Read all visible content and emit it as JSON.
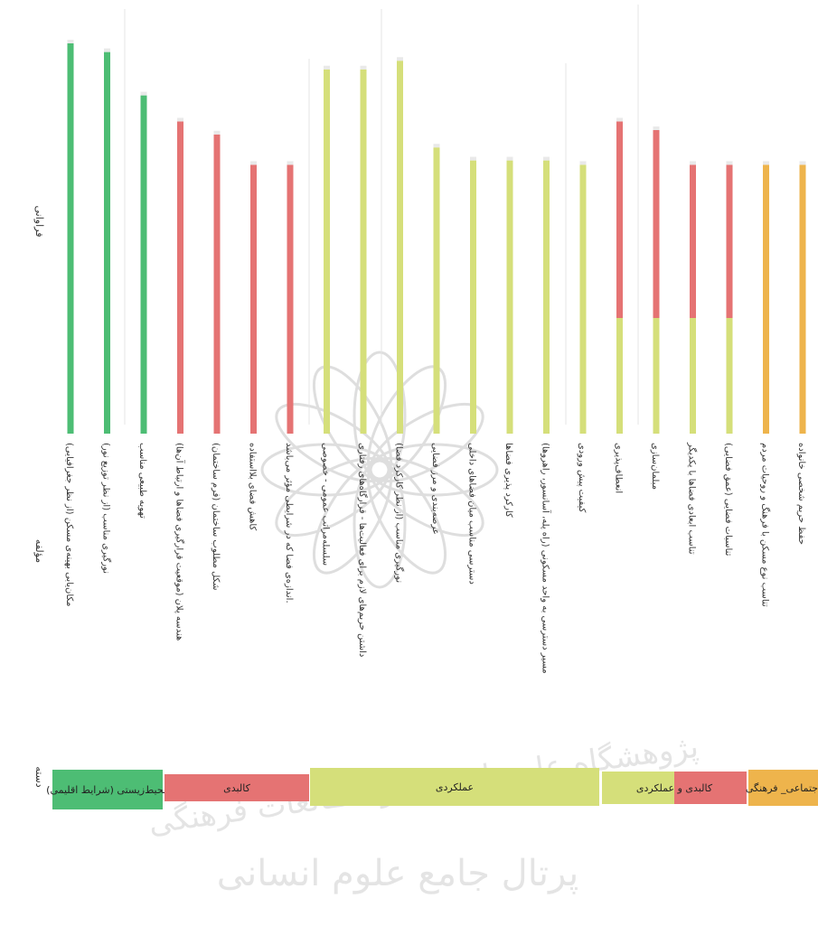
{
  "chart_data": {
    "type": "bar",
    "ylabel": "فراوانی",
    "xlabel": "مؤلفه",
    "group_axis_label": "دسته",
    "categories": [
      "مکان‌یابی بهینه‌ی مسکن (از نظر جغرافیایی)",
      "نورگیری مناسب (از نظر توزیع نور)",
      "تهویه طبیعی مناسب",
      "هندسه پلان (موقعیت قرارگیری فضاها و ارتباط آن‌ها)",
      "شکل مطلوب ساختمان (فرم ساختمان)",
      "کاهش فضای بلااستفاده",
      "اندازه‌ی فضا که در شرایطی مؤثر می‌باشد.",
      "سلسله‌مراتب عمومی - خصوصی",
      "داشتن حریم‌های لازم برای فعالیت‌ها - قرارگاه‌های رفتاری",
      "نورگیری مناسب (از نظر کارکرد فضا)",
      "عرصه‌بندی و مرز فضایی",
      "دسترسی مناسب میان فضاهای داخلی",
      "کارکرد پذیری فضاها",
      "مسیر دسترسی به واحد مسکونی (راه پله، آسانسور، راهرو‌ها)",
      "کیفیت پیش ورودی",
      "انعطاف‌پذیری",
      "مبلمان‌سازی",
      "تناسب ابعادی فضاها با یکدیگر",
      "تناسبات فضایی (عمق فضایی)",
      "تناسب نوع مسکن با فرهنگ و روحیات مردم",
      "حفظ حریم شخصی خانواده"
    ],
    "values": [
      9,
      8.8,
      7.8,
      7.2,
      6.9,
      6.2,
      6.2,
      8.4,
      8.4,
      8.6,
      6.6,
      6.3,
      6.3,
      6.3,
      6.2,
      7.2,
      7.0,
      6.2,
      6.2,
      6.2,
      6.2
    ],
    "value_labels": [
      "",
      "",
      "",
      "",
      "",
      "",
      "",
      "",
      "",
      "",
      "",
      "",
      "",
      "",
      "",
      "",
      "",
      "",
      "",
      "",
      ""
    ],
    "bar_groups": [
      0,
      0,
      0,
      1,
      1,
      1,
      1,
      2,
      2,
      2,
      2,
      2,
      2,
      2,
      2,
      3,
      3,
      3,
      3,
      4,
      4
    ],
    "ylim": [
      0,
      10
    ],
    "groups": [
      {
        "label": "محیط‌زیستی (شرایط اقلیمی)",
        "color": "#4dbd74"
      },
      {
        "label": "کالبدی",
        "color": "#e57373"
      },
      {
        "label": "عملکردی",
        "color": "#d5df7a"
      },
      {
        "label": "کالبدی و عملکردی",
        "color": "#e57373",
        "color2": "#d5df7a"
      },
      {
        "label": "اجتماعی_ فرهنگی",
        "color": "#eeb44c"
      }
    ],
    "grid": false
  },
  "watermark": {
    "line1": "پژوهشگاه علوم انسانی و مطالعات فرهنگی",
    "line2": "پرتال جامع علوم انسانی"
  }
}
